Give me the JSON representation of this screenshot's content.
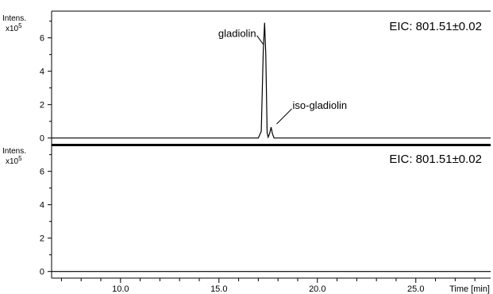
{
  "chart_data": [
    {
      "type": "line",
      "panel": "top",
      "y_title": "Intens.",
      "y_scale_base": "x10",
      "y_scale_exp": "5",
      "trace_label": "EIC: 801.51±0.02",
      "ylim": [
        -0.3,
        7.6
      ],
      "y_ticks": [
        0,
        2,
        4,
        6
      ],
      "y_tick_labels": [
        "0",
        "2",
        "4",
        "6"
      ],
      "x": [
        6.5,
        17.0,
        17.15,
        17.25,
        17.32,
        17.38,
        17.45,
        17.5,
        17.58,
        17.65,
        17.72,
        17.8,
        28.8
      ],
      "y": [
        0,
        0,
        0.4,
        5.2,
        6.9,
        5.0,
        0.3,
        0.05,
        0.3,
        0.65,
        0.25,
        0,
        0
      ],
      "annotations": [
        {
          "text": "gladiolin",
          "x": 17.33,
          "y": 6.9
        },
        {
          "text": "iso-gladiolin",
          "x": 17.65,
          "y": 0.65
        }
      ]
    },
    {
      "type": "line",
      "panel": "bottom",
      "y_title": "Intens.",
      "y_scale_base": "x10",
      "y_scale_exp": "5",
      "trace_label": "EIC: 801.51±0.02",
      "ylim": [
        -0.3,
        7.6
      ],
      "y_ticks": [
        0,
        2,
        4,
        6
      ],
      "y_tick_labels": [
        "0",
        "2",
        "4",
        "6"
      ],
      "x": [
        6.5,
        28.8
      ],
      "y": [
        0,
        0
      ],
      "x_title": "Time [min]",
      "x_ticks": [
        10.0,
        15.0,
        20.0,
        25.0
      ],
      "x_tick_labels": [
        "10.0",
        "15.0",
        "20.0",
        "25.0"
      ],
      "xlim": [
        6.5,
        28.8
      ]
    }
  ]
}
